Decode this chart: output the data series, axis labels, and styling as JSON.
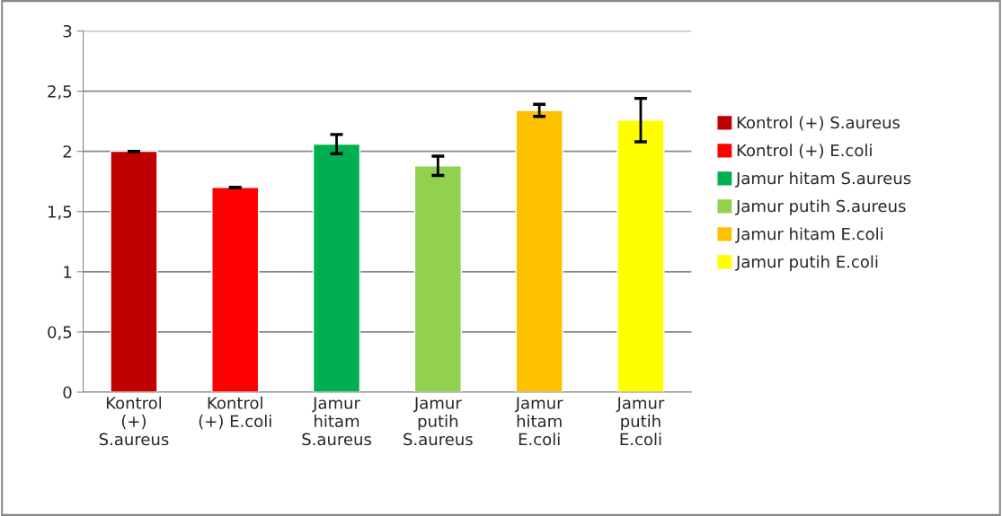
{
  "chart_data": {
    "type": "bar",
    "categories": [
      "Kontrol\n(+)\nS.aureus",
      "Kontrol\n(+) E.coli",
      "Jamur\nhitam\nS.aureus",
      "Jamur\nputih\nS.aureus",
      "Jamur\nhitam\nE.coli",
      "Jamur\nputih\nE.coli"
    ],
    "series": [
      {
        "name": "Kontrol (+) S.aureus",
        "color": "#c00000",
        "values": [
          2.0,
          null,
          null,
          null,
          null,
          null
        ],
        "errors": [
          0,
          null,
          null,
          null,
          null,
          null
        ]
      },
      {
        "name": "Kontrol (+) E.coli",
        "color": "#ff0000",
        "values": [
          null,
          1.7,
          null,
          null,
          null,
          null
        ],
        "errors": [
          null,
          0,
          null,
          null,
          null,
          null
        ]
      },
      {
        "name": "Jamur hitam S.aureus",
        "color": "#00b050",
        "values": [
          null,
          null,
          2.06,
          null,
          null,
          null
        ],
        "errors": [
          null,
          null,
          0.08,
          null,
          null,
          null
        ]
      },
      {
        "name": "Jamur putih S.aureus",
        "color": "#92d050",
        "values": [
          null,
          null,
          null,
          1.88,
          null,
          null
        ],
        "errors": [
          null,
          null,
          null,
          0.08,
          null,
          null
        ]
      },
      {
        "name": "Jamur hitam E.coli",
        "color": "#ffc000",
        "values": [
          null,
          null,
          null,
          null,
          2.34,
          null
        ],
        "errors": [
          null,
          null,
          null,
          null,
          0.05,
          null
        ]
      },
      {
        "name": "Jamur putih E.coli",
        "color": "#ffff00",
        "values": [
          null,
          null,
          null,
          null,
          null,
          2.26
        ],
        "errors": [
          null,
          null,
          null,
          null,
          null,
          0.18
        ]
      }
    ],
    "ylim": [
      0,
      3
    ],
    "yticks": [
      0,
      {
        "value": 0.5,
        "label": "0,5"
      },
      1,
      {
        "value": 1.5,
        "label": "1,5"
      },
      2,
      {
        "value": 2.5,
        "label": "2,5"
      },
      3
    ],
    "grid": "y",
    "legend": "right"
  }
}
